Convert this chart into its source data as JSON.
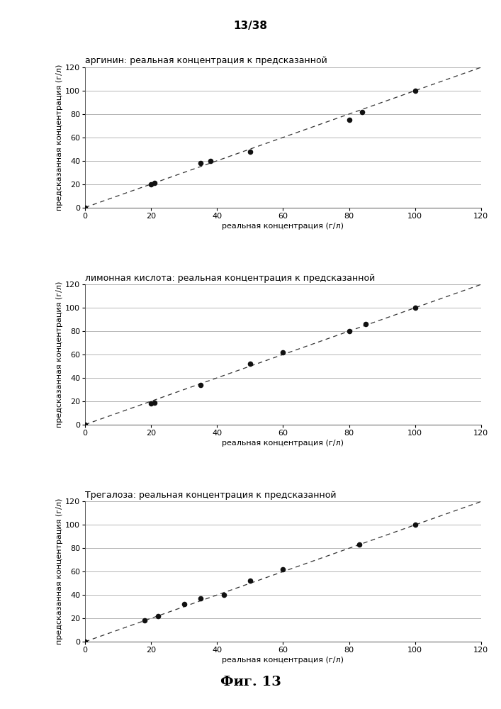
{
  "page_label": "13/38",
  "fig_label": "Фиг. 13",
  "plots": [
    {
      "title": "аргинин: реальная концентрация к предсказанной",
      "xlabel": "реальная концентрация (г/л)",
      "ylabel": "предсказанная концентрация (г/л)",
      "x_data": [
        0,
        20,
        21,
        35,
        38,
        50,
        80,
        84,
        100
      ],
      "y_data": [
        0,
        20,
        21,
        38,
        40,
        48,
        75,
        82,
        100
      ],
      "xlim": [
        0,
        120
      ],
      "ylim": [
        0,
        120
      ],
      "xticks": [
        0,
        20,
        40,
        60,
        80,
        100,
        120
      ],
      "yticks": [
        0,
        20,
        40,
        60,
        80,
        100,
        120
      ]
    },
    {
      "title": "лимонная кислота: реальная концентрация к предсказанной",
      "xlabel": "реальная концентрация (г/л)",
      "ylabel": "предсказанная концентрация (г/л)",
      "x_data": [
        0,
        20,
        21,
        35,
        50,
        60,
        80,
        85,
        100
      ],
      "y_data": [
        0,
        18,
        19,
        34,
        52,
        62,
        80,
        86,
        100
      ],
      "xlim": [
        0,
        120
      ],
      "ylim": [
        0,
        120
      ],
      "xticks": [
        0,
        20,
        40,
        60,
        80,
        100,
        120
      ],
      "yticks": [
        0,
        20,
        40,
        60,
        80,
        100,
        120
      ]
    },
    {
      "title": "Трегалоза: реальная концентрация к предсказанной",
      "xlabel": "реальная концентрация (г/л)",
      "ylabel": "предсказанная концентрация (г/л)",
      "x_data": [
        0,
        18,
        22,
        30,
        35,
        42,
        50,
        60,
        83,
        100
      ],
      "y_data": [
        0,
        18,
        22,
        32,
        37,
        40,
        52,
        62,
        83,
        100
      ],
      "xlim": [
        0,
        120
      ],
      "ylim": [
        0,
        120
      ],
      "xticks": [
        0,
        20,
        40,
        60,
        80,
        100,
        120
      ],
      "yticks": [
        0,
        20,
        40,
        60,
        80,
        100,
        120
      ]
    }
  ],
  "dot_color": "#111111",
  "dot_size": 30,
  "line_color": "#333333",
  "line_style": "--",
  "background_color": "#ffffff",
  "grid_color": "#aaaaaa",
  "title_fontsize": 9,
  "label_fontsize": 8,
  "tick_fontsize": 8,
  "page_label_fontsize": 11,
  "fig_label_fontsize": 14
}
